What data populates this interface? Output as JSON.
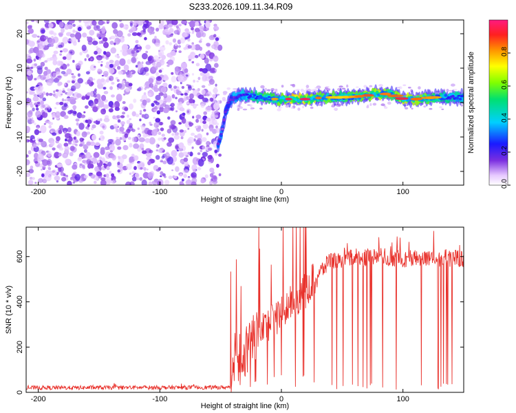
{
  "title": "S233.2026.109.11.34.R09",
  "colors": {
    "snr_line": "#e8302a",
    "spectro_noise": "#7a2fe0",
    "background": "#ffffff"
  },
  "chart_data": [
    {
      "type": "heatmap",
      "xlabel": "Height of straight line (km)",
      "ylabel": "Frequency (Hz)",
      "xlim": [
        -210,
        150
      ],
      "ylim": [
        -24,
        24
      ],
      "x_ticks": [
        -200,
        -100,
        0,
        100
      ],
      "x_tick_labels": [
        "-200",
        "-100",
        "0",
        "100"
      ],
      "y_ticks": [
        -20,
        -10,
        0,
        10,
        20
      ],
      "y_tick_labels": [
        "-20",
        "-10",
        "0",
        "10",
        "20"
      ],
      "colorbar": {
        "label": "Normalized spectral amplitude",
        "range": [
          0,
          1
        ],
        "ticks": [
          0,
          0.2,
          0.4,
          0.6,
          0.8
        ],
        "tick_labels": [
          "0.0",
          "0.2",
          "0.4",
          "0.6",
          "0.8"
        ],
        "colormap": "rainbow"
      },
      "noise_region_end_km": -55,
      "ridge": [
        {
          "x": -52,
          "y": -12,
          "amp": 0.45
        },
        {
          "x": -50,
          "y": -10,
          "amp": 0.5
        },
        {
          "x": -48,
          "y": -7,
          "amp": 0.35
        },
        {
          "x": -46,
          "y": -3,
          "amp": 0.4
        },
        {
          "x": -42,
          "y": 1,
          "amp": 0.45
        },
        {
          "x": -35,
          "y": 2,
          "amp": 0.5
        },
        {
          "x": -25,
          "y": 2,
          "amp": 0.65
        },
        {
          "x": -15,
          "y": 1.5,
          "amp": 0.7
        },
        {
          "x": -5,
          "y": 1,
          "amp": 0.75
        },
        {
          "x": 10,
          "y": 1,
          "amp": 0.95
        },
        {
          "x": 20,
          "y": 1,
          "amp": 0.9
        },
        {
          "x": 35,
          "y": 1.5,
          "amp": 0.75
        },
        {
          "x": 50,
          "y": 1.5,
          "amp": 0.7
        },
        {
          "x": 65,
          "y": 1.8,
          "amp": 0.8
        },
        {
          "x": 80,
          "y": 2.5,
          "amp": 0.85
        },
        {
          "x": 90,
          "y": 2.5,
          "amp": 0.75
        },
        {
          "x": 100,
          "y": 1,
          "amp": 0.9
        },
        {
          "x": 110,
          "y": 1,
          "amp": 0.8
        },
        {
          "x": 125,
          "y": 1.5,
          "amp": 0.75
        },
        {
          "x": 140,
          "y": 1.5,
          "amp": 0.6
        }
      ]
    },
    {
      "type": "line",
      "xlabel": "Height of straight line (km)",
      "ylabel": "SNR (10 * v/v)",
      "xlim": [
        -210,
        150
      ],
      "ylim": [
        0,
        730
      ],
      "x_ticks": [
        -200,
        -100,
        0,
        100
      ],
      "x_tick_labels": [
        "-200",
        "-100",
        "0",
        "100"
      ],
      "y_ticks": [
        0,
        200,
        400,
        600
      ],
      "y_tick_labels": [
        "0",
        "200",
        "400",
        "600"
      ],
      "envelope": [
        {
          "x": -210,
          "y": 20
        },
        {
          "x": -42,
          "y": 22
        },
        {
          "x": -38,
          "y": 180
        },
        {
          "x": -30,
          "y": 160
        },
        {
          "x": -20,
          "y": 250
        },
        {
          "x": -10,
          "y": 300
        },
        {
          "x": 0,
          "y": 340
        },
        {
          "x": 10,
          "y": 400
        },
        {
          "x": 20,
          "y": 440
        },
        {
          "x": 30,
          "y": 520
        },
        {
          "x": 40,
          "y": 580
        },
        {
          "x": 60,
          "y": 595
        },
        {
          "x": 80,
          "y": 600
        },
        {
          "x": 100,
          "y": 590
        },
        {
          "x": 120,
          "y": 595
        },
        {
          "x": 150,
          "y": 590
        }
      ],
      "dropouts_after_km": 38
    }
  ]
}
